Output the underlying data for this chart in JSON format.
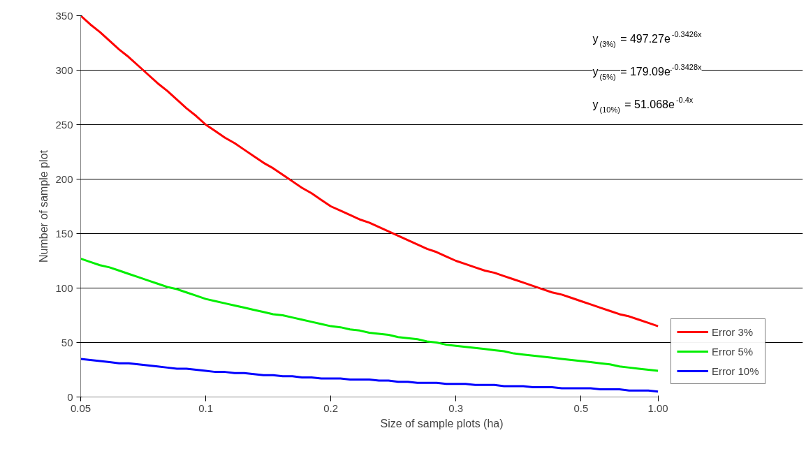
{
  "chart_data": {
    "type": "line",
    "xlabel": "Size of sample plots (ha)",
    "ylabel": "Number of sample plot",
    "categories": [
      "0.05",
      null,
      null,
      null,
      null,
      null,
      null,
      null,
      null,
      null,
      null,
      null,
      null,
      "0.1",
      null,
      null,
      null,
      null,
      null,
      null,
      null,
      null,
      null,
      null,
      null,
      null,
      "0.2",
      null,
      null,
      null,
      null,
      null,
      null,
      null,
      null,
      null,
      null,
      null,
      null,
      "0.3",
      null,
      null,
      null,
      null,
      null,
      null,
      null,
      null,
      null,
      null,
      null,
      null,
      "0.5",
      null,
      null,
      null,
      null,
      null,
      null,
      null,
      "1.00"
    ],
    "series": [
      {
        "name": "Error 3%",
        "color": "#ff0000",
        "values": [
          350,
          342,
          335,
          327,
          319,
          312,
          304,
          296,
          288,
          281,
          273,
          265,
          258,
          250,
          244,
          238,
          233,
          227,
          221,
          215,
          210,
          204,
          198,
          192,
          187,
          181,
          175,
          171,
          167,
          163,
          160,
          156,
          152,
          148,
          144,
          140,
          136,
          133,
          129,
          125,
          122,
          119,
          116,
          114,
          111,
          108,
          105,
          102,
          99,
          96,
          94,
          91,
          88,
          85,
          82,
          79,
          76,
          74,
          71,
          68,
          65
        ]
      },
      {
        "name": "Error 5%",
        "color": "#00ee00",
        "values": [
          127,
          124,
          121,
          119,
          116,
          113,
          110,
          107,
          104,
          101,
          99,
          96,
          93,
          90,
          88,
          86,
          84,
          82,
          80,
          78,
          76,
          75,
          73,
          71,
          69,
          67,
          65,
          64,
          62,
          61,
          59,
          58,
          57,
          55,
          54,
          53,
          51,
          50,
          48,
          47,
          46,
          45,
          44,
          43,
          42,
          40,
          39,
          38,
          37,
          36,
          35,
          34,
          33,
          32,
          31,
          30,
          28,
          27,
          26,
          25,
          24
        ]
      },
      {
        "name": "Error 10%",
        "color": "#0000ff",
        "values": [
          35,
          34,
          33,
          32,
          31,
          31,
          30,
          29,
          28,
          27,
          26,
          26,
          25,
          24,
          23,
          23,
          22,
          22,
          21,
          20,
          20,
          19,
          19,
          18,
          18,
          17,
          17,
          17,
          16,
          16,
          16,
          15,
          15,
          14,
          14,
          13,
          13,
          13,
          12,
          12,
          12,
          11,
          11,
          11,
          10,
          10,
          10,
          9,
          9,
          9,
          8,
          8,
          8,
          8,
          7,
          7,
          7,
          6,
          6,
          6,
          5
        ]
      }
    ],
    "ylim": [
      0,
      350
    ],
    "yticks": [
      0,
      50,
      100,
      150,
      200,
      250,
      300,
      350
    ],
    "grid": "y",
    "legend": "right",
    "marker": "none",
    "line_style": "solid",
    "annotations": [
      "y$_{(3%)}$ = 497.27e$^{-0.3426x}$",
      "y$_{(5%)}$ = 179.09e$^{-0.3428x}$",
      "y$_{(10%)}$ = 51.068e$^{-0.4x}$"
    ]
  }
}
